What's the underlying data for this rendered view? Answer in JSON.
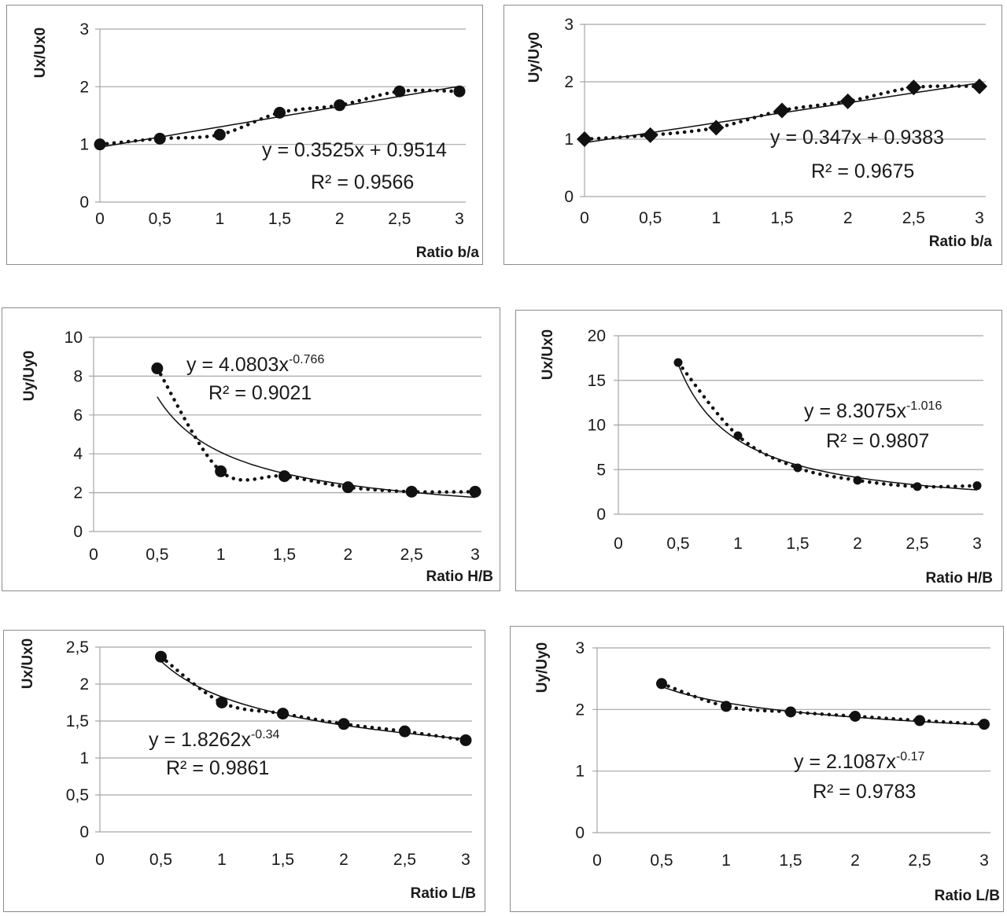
{
  "chart_data": [
    {
      "type": "scatter",
      "ylabel": "Ux/Ux0",
      "xlabel": "Ratio b/a",
      "marker": "circle",
      "xlim": [
        0,
        3
      ],
      "ylim": [
        0,
        3
      ],
      "xticks": [
        "0",
        "0,5",
        "1",
        "1,5",
        "2",
        "2,5",
        "3"
      ],
      "yticks": [
        "0",
        "1",
        "2",
        "3"
      ],
      "ytick_values": [
        0,
        1,
        2,
        3
      ],
      "x": [
        0,
        0.5,
        1,
        1.5,
        2,
        2.5,
        3
      ],
      "y": [
        1.0,
        1.1,
        1.17,
        1.55,
        1.68,
        1.92,
        1.92
      ],
      "trendline": {
        "type": "linear",
        "a": 0.3525,
        "b": 0.9514,
        "x_range": [
          0,
          3
        ]
      },
      "equation": "y = 0.3525x + 0.9514",
      "r2": "R² = 0.9566"
    },
    {
      "type": "scatter",
      "ylabel": "Uy/Uy0",
      "xlabel": "Ratio b/a",
      "marker": "diamond",
      "xlim": [
        0,
        3
      ],
      "ylim": [
        0,
        3
      ],
      "xticks": [
        "0",
        "0,5",
        "1",
        "1,5",
        "2",
        "2,5",
        "3"
      ],
      "yticks": [
        "0",
        "1",
        "2",
        "3"
      ],
      "ytick_values": [
        0,
        1,
        2,
        3
      ],
      "x": [
        0,
        0.5,
        1,
        1.5,
        2,
        2.5,
        3
      ],
      "y": [
        1.0,
        1.07,
        1.2,
        1.5,
        1.66,
        1.9,
        1.92
      ],
      "trendline": {
        "type": "linear",
        "a": 0.347,
        "b": 0.9383,
        "x_range": [
          0,
          3
        ]
      },
      "equation": "y = 0.347x + 0.9383",
      "r2": "R² = 0.9675"
    },
    {
      "type": "scatter",
      "ylabel": "Uy/Uy0",
      "xlabel": "Ratio H/B",
      "marker": "circle",
      "xlim": [
        0,
        3
      ],
      "ylim": [
        0,
        10
      ],
      "xticks": [
        "0",
        "0,5",
        "1",
        "1,5",
        "2",
        "2,5",
        "3"
      ],
      "yticks": [
        "0",
        "2",
        "4",
        "6",
        "8",
        "10"
      ],
      "ytick_values": [
        0,
        2,
        4,
        6,
        8,
        10
      ],
      "x": [
        0.5,
        1,
        1.5,
        2,
        2.5,
        3
      ],
      "y": [
        8.4,
        3.1,
        2.85,
        2.28,
        2.05,
        2.05
      ],
      "trendline": {
        "type": "power",
        "a": 4.0803,
        "b": -0.766,
        "x_range": [
          0.5,
          3
        ]
      },
      "eq_prefix": "y = 4.0803x",
      "eq_exp": "-0.766",
      "r2": "R² = 0.9021"
    },
    {
      "type": "scatter",
      "ylabel": "Ux/Ux0",
      "xlabel": "Ratio H/B",
      "marker": "circle",
      "xlim": [
        0,
        3
      ],
      "ylim": [
        0,
        20
      ],
      "xticks": [
        "0",
        "0,5",
        "1",
        "1,5",
        "2",
        "2,5",
        "3"
      ],
      "yticks": [
        "0",
        "5",
        "10",
        "15",
        "20"
      ],
      "ytick_values": [
        0,
        5,
        10,
        15,
        20
      ],
      "x": [
        0.5,
        1,
        1.5,
        2,
        2.5,
        3
      ],
      "y": [
        17.0,
        8.8,
        5.2,
        3.8,
        3.1,
        3.2
      ],
      "trendline": {
        "type": "power",
        "a": 8.3075,
        "b": -1.016,
        "x_range": [
          0.5,
          3
        ]
      },
      "eq_prefix": "y = 8.3075x",
      "eq_exp": "-1.016",
      "r2": "R² = 0.9807"
    },
    {
      "type": "scatter",
      "ylabel": "Ux/Ux0",
      "xlabel": "Ratio L/B",
      "marker": "circle",
      "xlim": [
        0,
        3
      ],
      "ylim": [
        0,
        2.5
      ],
      "xticks": [
        "0",
        "0,5",
        "1",
        "1,5",
        "2",
        "2,5",
        "3"
      ],
      "yticks": [
        "0",
        "0,5",
        "1",
        "1,5",
        "2",
        "2,5"
      ],
      "ytick_values": [
        0,
        0.5,
        1,
        1.5,
        2,
        2.5
      ],
      "x": [
        0.5,
        1,
        1.5,
        2,
        2.5,
        3
      ],
      "y": [
        2.37,
        1.75,
        1.6,
        1.46,
        1.36,
        1.24
      ],
      "trendline": {
        "type": "power",
        "a": 1.8262,
        "b": -0.34,
        "x_range": [
          0.5,
          3
        ]
      },
      "eq_prefix": "y = 1.8262x",
      "eq_exp": "-0.34",
      "r2": "R² = 0.9861"
    },
    {
      "type": "scatter",
      "ylabel": "Uy/Uy0",
      "xlabel": "Ratio L/B",
      "marker": "circle",
      "xlim": [
        0,
        3
      ],
      "ylim": [
        0,
        3
      ],
      "xticks": [
        "0",
        "0,5",
        "1",
        "1,5",
        "2",
        "2,5",
        "3"
      ],
      "yticks": [
        "0",
        "1",
        "2",
        "3"
      ],
      "ytick_values": [
        0,
        1,
        2,
        3
      ],
      "x": [
        0.5,
        1,
        1.5,
        2,
        2.5,
        3
      ],
      "y": [
        2.42,
        2.05,
        1.96,
        1.89,
        1.82,
        1.76
      ],
      "trendline": {
        "type": "power",
        "a": 2.1087,
        "b": -0.17,
        "x_range": [
          0.5,
          3
        ]
      },
      "eq_prefix": "y = 2.1087x",
      "eq_exp": "-0.17",
      "r2": "R² = 0.9783"
    }
  ]
}
